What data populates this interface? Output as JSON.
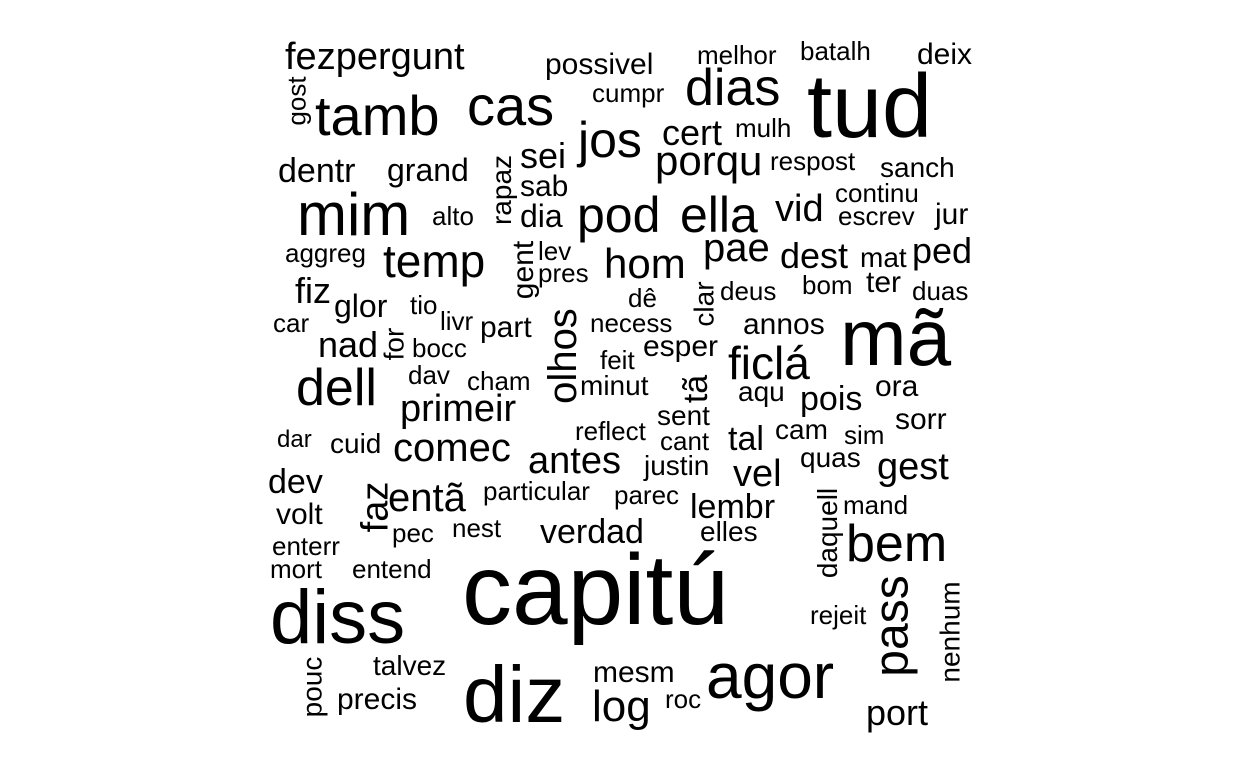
{
  "text_color": "#000000",
  "background": "#ffffff",
  "words": [
    "fezpergunt",
    "possivel",
    "melhor",
    "batalh",
    "deix",
    "gost",
    "tamb",
    "cas",
    "cumpr",
    "dias",
    "tud",
    "jos",
    "cert",
    "mulh",
    "dentr",
    "grand",
    "rapaz",
    "sei",
    "porqu",
    "respost",
    "sanch",
    "mim",
    "sab",
    "continu",
    "alto",
    "dia",
    "pod",
    "ella",
    "vid",
    "escrev",
    "jur",
    "aggreg",
    "temp",
    "gent",
    "lev",
    "pae",
    "dest",
    "mat",
    "ped",
    "pres",
    "hom",
    "fiz",
    "ter",
    "dê",
    "clar",
    "deus",
    "bom",
    "duas",
    "glor",
    "tio",
    "car",
    "livr",
    "part",
    "necess",
    "annos",
    "mã",
    "nad",
    "for",
    "bocc",
    "olhos",
    "esper",
    "ficlá",
    "feit",
    "dell",
    "dav",
    "cham",
    "minut",
    "tã",
    "aqu",
    "ora",
    "pois",
    "primeir",
    "sent",
    "reflect",
    "sorr",
    "dar",
    "cuid",
    "comec",
    "cant",
    "tal",
    "cam",
    "sim",
    "antes",
    "quas",
    "gest",
    "dev",
    "justin",
    "vel",
    "entã",
    "particular",
    "parec",
    "faz",
    "lembr",
    "volt",
    "daquell",
    "mand",
    "verdad",
    "pec",
    "nest",
    "elles",
    "bem",
    "enterr",
    "mort",
    "entend",
    "capitú",
    "diss",
    "pass",
    "nenhum",
    "rejeit",
    "talvez",
    "mesm",
    "pouc",
    "agor",
    "diz",
    "roc",
    "precis",
    "log",
    "port"
  ]
}
